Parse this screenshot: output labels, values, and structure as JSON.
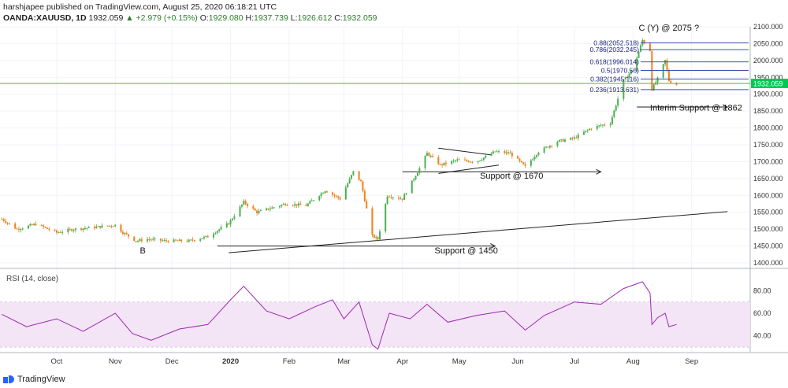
{
  "header": {
    "published": "harshjapee published on TradingView.com, August 25, 2020 06:18:21 UTC",
    "symbol": "OANDA:XAUUSD, 1D",
    "last": "1932.059",
    "change": "▲ +2.979 (+0.15%)",
    "o_label": "O:",
    "o_value": "1929.080",
    "h_label": "H:",
    "h_value": "1937.739",
    "l_label": "L:",
    "l_value": "1926.612",
    "c_label": "C:",
    "c_value": "1932.059"
  },
  "footer": {
    "brand": "TradingView"
  },
  "colors": {
    "up": "#26a69a",
    "down": "#f57f17",
    "green_up": "#4caf50",
    "price_line": "#4caf50",
    "fib": "#3f51b5",
    "rsi": "#9c27b0",
    "rsi_band": "#f3e5f5"
  },
  "chart_data": [
    {
      "type": "candlestick",
      "title": "",
      "price_scale": [
        1400,
        2100
      ],
      "y_ticks": [
        "2100.000",
        "2050.000",
        "2000.000",
        "1950.000",
        "1900.000",
        "1850.000",
        "1800.000",
        "1750.000",
        "1700.000",
        "1650.000",
        "1600.000",
        "1550.000",
        "1500.000",
        "1450.000",
        "1400.000"
      ],
      "x_labels": [
        "Oct",
        "Nov",
        "Dec",
        "2020",
        "Feb",
        "Mar",
        "Apr",
        "May",
        "Jun",
        "Jul",
        "Aug",
        "Sep"
      ],
      "last_price_label": "1932.059",
      "close_path": [
        [
          "2019-09-02",
          1530
        ],
        [
          "2019-09-10",
          1500
        ],
        [
          "2019-09-20",
          1515
        ],
        [
          "2019-10-01",
          1490
        ],
        [
          "2019-10-10",
          1500
        ],
        [
          "2019-10-20",
          1505
        ],
        [
          "2019-11-01",
          1512
        ],
        [
          "2019-11-05",
          1490
        ],
        [
          "2019-11-12",
          1465
        ],
        [
          "2019-11-18",
          1470
        ],
        [
          "2019-11-28",
          1465
        ],
        [
          "2019-12-10",
          1465
        ],
        [
          "2019-12-20",
          1478
        ],
        [
          "2019-12-31",
          1517
        ],
        [
          "2020-01-08",
          1580
        ],
        [
          "2020-01-15",
          1550
        ],
        [
          "2020-01-30",
          1575
        ],
        [
          "2020-02-10",
          1570
        ],
        [
          "2020-02-20",
          1615
        ],
        [
          "2020-02-28",
          1590
        ],
        [
          "2020-03-06",
          1670
        ],
        [
          "2020-03-10",
          1640
        ],
        [
          "2020-03-16",
          1480
        ],
        [
          "2020-03-19",
          1470
        ],
        [
          "2020-03-24",
          1600
        ],
        [
          "2020-04-01",
          1590
        ],
        [
          "2020-04-10",
          1680
        ],
        [
          "2020-04-14",
          1725
        ],
        [
          "2020-04-21",
          1690
        ],
        [
          "2020-04-30",
          1705
        ],
        [
          "2020-05-10",
          1700
        ],
        [
          "2020-05-20",
          1730
        ],
        [
          "2020-05-28",
          1725
        ],
        [
          "2020-06-05",
          1685
        ],
        [
          "2020-06-12",
          1730
        ],
        [
          "2020-06-22",
          1760
        ],
        [
          "2020-07-01",
          1770
        ],
        [
          "2020-07-10",
          1800
        ],
        [
          "2020-07-20",
          1815
        ],
        [
          "2020-07-27",
          1940
        ],
        [
          "2020-08-01",
          1975
        ],
        [
          "2020-08-06",
          2060
        ],
        [
          "2020-08-10",
          2030
        ],
        [
          "2020-08-11",
          1915
        ],
        [
          "2020-08-14",
          1945
        ],
        [
          "2020-08-18",
          2000
        ],
        [
          "2020-08-20",
          1940
        ],
        [
          "2020-08-24",
          1929
        ]
      ],
      "fibonacci": [
        {
          "ratio": 0.88,
          "price": 2052.518,
          "label": "0.88(2052.518)"
        },
        {
          "ratio": 0.786,
          "price": 2032.245,
          "label": "0.786(2032.245)"
        },
        {
          "ratio": 0.618,
          "price": 1996.014,
          "label": "0.618(1996.014)"
        },
        {
          "ratio": 0.5,
          "price": 1970.56,
          "label": "0.5(1970.56)"
        },
        {
          "ratio": 0.382,
          "price": 1945.116,
          "label": "0.382(1945.116)"
        },
        {
          "ratio": 0.236,
          "price": 1913.631,
          "label": "0.236(1913.631)"
        }
      ],
      "annotations": [
        {
          "text": "C (Y) @ 2075 ?",
          "date": "2020-08-04",
          "price": 2088
        },
        {
          "text": "Interim Support @ 1862",
          "date": "2020-08-10",
          "price": 1852
        },
        {
          "text": "Support @ 1670",
          "date": "2020-05-12",
          "price": 1650
        },
        {
          "text": "Support @ 1450",
          "date": "2020-04-18",
          "price": 1428
        },
        {
          "text": "B",
          "date": "2019-11-14",
          "price": 1428
        }
      ],
      "support_arrows": [
        {
          "price": 1862,
          "from": "2020-08-03",
          "to": "2020-09-20"
        },
        {
          "price": 1670,
          "from": "2020-04-01",
          "to": "2020-07-15"
        },
        {
          "price": 1450,
          "from": "2019-12-25",
          "to": "2020-05-20"
        }
      ],
      "trendline": {
        "from": [
          "2019-12-31",
          1430
        ],
        "to": [
          "2020-09-20",
          1552
        ]
      },
      "triangle": {
        "upper": {
          "from": [
            "2020-04-20",
            1740
          ],
          "to": [
            "2020-05-18",
            1720
          ]
        },
        "lower": {
          "from": [
            "2020-04-20",
            1665
          ],
          "to": [
            "2020-05-22",
            1690
          ]
        }
      }
    },
    {
      "type": "line",
      "title": "RSI (14, close)",
      "y_ticks": [
        "80.00",
        "60.00",
        "40.00"
      ],
      "ylim": [
        25,
        95
      ],
      "band": [
        30,
        70
      ],
      "x": [
        "2019-09-02",
        "2019-09-15",
        "2019-10-01",
        "2019-10-15",
        "2019-11-01",
        "2019-11-10",
        "2019-11-20",
        "2019-12-05",
        "2019-12-20",
        "2020-01-01",
        "2020-01-08",
        "2020-01-20",
        "2020-02-01",
        "2020-02-15",
        "2020-02-24",
        "2020-03-01",
        "2020-03-09",
        "2020-03-16",
        "2020-03-19",
        "2020-03-25",
        "2020-04-05",
        "2020-04-14",
        "2020-04-25",
        "2020-05-10",
        "2020-05-25",
        "2020-06-05",
        "2020-06-15",
        "2020-07-01",
        "2020-07-15",
        "2020-07-27",
        "2020-08-06",
        "2020-08-10",
        "2020-08-11",
        "2020-08-14",
        "2020-08-18",
        "2020-08-20",
        "2020-08-24"
      ],
      "y": [
        59,
        48,
        55,
        44,
        60,
        42,
        36,
        46,
        50,
        72,
        84,
        62,
        55,
        66,
        72,
        55,
        70,
        32,
        28,
        60,
        55,
        68,
        52,
        58,
        62,
        45,
        58,
        70,
        68,
        82,
        88,
        78,
        50,
        56,
        60,
        48,
        50
      ]
    }
  ]
}
